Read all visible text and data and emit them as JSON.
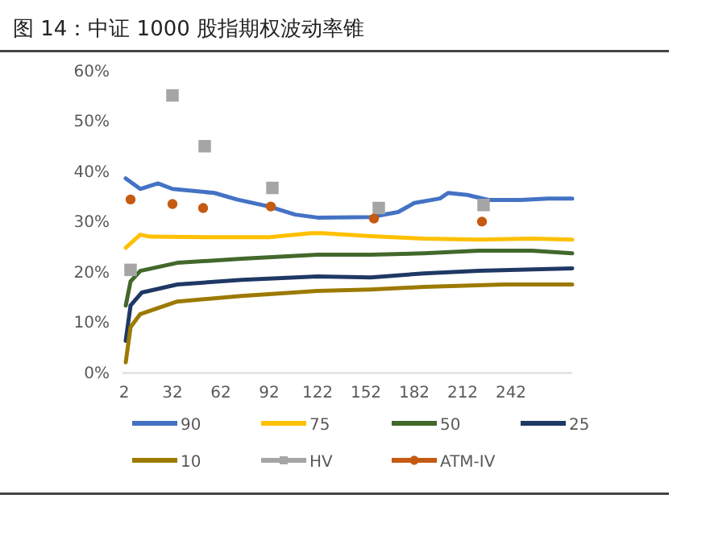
{
  "chart_data": {
    "type": "line",
    "title": "图 14：中证 1000 股指期权波动率锥",
    "xlim": [
      1,
      280
    ],
    "xticks": [
      2,
      32,
      62,
      92,
      122,
      152,
      182,
      212,
      242
    ],
    "ylim": [
      0,
      60
    ],
    "yticks": [
      {
        "value": 0,
        "label": "0%"
      },
      {
        "value": 10,
        "label": "10%"
      },
      {
        "value": 20,
        "label": "20%"
      },
      {
        "value": 30,
        "label": "30%"
      },
      {
        "value": 40,
        "label": "40%"
      },
      {
        "value": 50,
        "label": "50%"
      },
      {
        "value": 60,
        "label": "60%"
      }
    ],
    "grid": false,
    "legend": "bottom",
    "series": [
      {
        "name": "90",
        "color": "#4472c4",
        "marker": "none",
        "x": [
          3,
          12,
          23,
          32,
          58,
          72,
          92,
          108,
          122,
          155,
          172,
          182,
          198,
          203,
          215,
          228,
          248,
          265,
          280
        ],
        "values": [
          38.7,
          36.6,
          37.7,
          36.6,
          35.8,
          34.5,
          33.1,
          31.5,
          30.9,
          31.0,
          32.0,
          33.8,
          34.7,
          35.8,
          35.4,
          34.4,
          34.4,
          34.7,
          34.7
        ]
      },
      {
        "name": "75",
        "color": "#ffc000",
        "marker": "none",
        "x": [
          3,
          12,
          18,
          58,
          92,
          118,
          125,
          155,
          188,
          222,
          255,
          280
        ],
        "values": [
          24.9,
          27.5,
          27.1,
          27.0,
          27.0,
          27.8,
          27.8,
          27.2,
          26.7,
          26.5,
          26.7,
          26.5
        ]
      },
      {
        "name": "50",
        "color": "#43682b",
        "marker": "none",
        "x": [
          3,
          6,
          12,
          35,
          75,
          122,
          155,
          188,
          222,
          255,
          280
        ],
        "values": [
          13.4,
          18.2,
          20.3,
          21.9,
          22.7,
          23.5,
          23.5,
          23.8,
          24.3,
          24.3,
          23.8
        ]
      },
      {
        "name": "25",
        "color": "#1f3864",
        "marker": "none",
        "x": [
          3,
          6,
          13,
          35,
          75,
          122,
          155,
          188,
          222,
          280
        ],
        "values": [
          6.4,
          13.4,
          16.0,
          17.6,
          18.5,
          19.2,
          19.0,
          19.8,
          20.3,
          20.8
        ]
      },
      {
        "name": "10",
        "color": "#9c7a00",
        "marker": "none",
        "x": [
          3,
          6,
          12,
          35,
          75,
          122,
          155,
          188,
          238,
          280
        ],
        "values": [
          2.1,
          9.1,
          11.7,
          14.2,
          15.3,
          16.3,
          16.6,
          17.1,
          17.6,
          17.6
        ]
      },
      {
        "name": "HV",
        "type": "scatter",
        "color": "#a5a5a5",
        "marker": "square",
        "x": [
          6,
          32,
          52,
          94,
          160,
          225
        ],
        "values": [
          20.5,
          55.2,
          45.1,
          36.8,
          32.8,
          33.4
        ]
      },
      {
        "name": "ATM-IV",
        "type": "scatter",
        "color": "#c55a11",
        "marker": "circle",
        "x": [
          6,
          32,
          51,
          93,
          157,
          224
        ],
        "values": [
          34.5,
          33.6,
          32.8,
          33.1,
          30.7,
          30.1
        ]
      }
    ]
  }
}
